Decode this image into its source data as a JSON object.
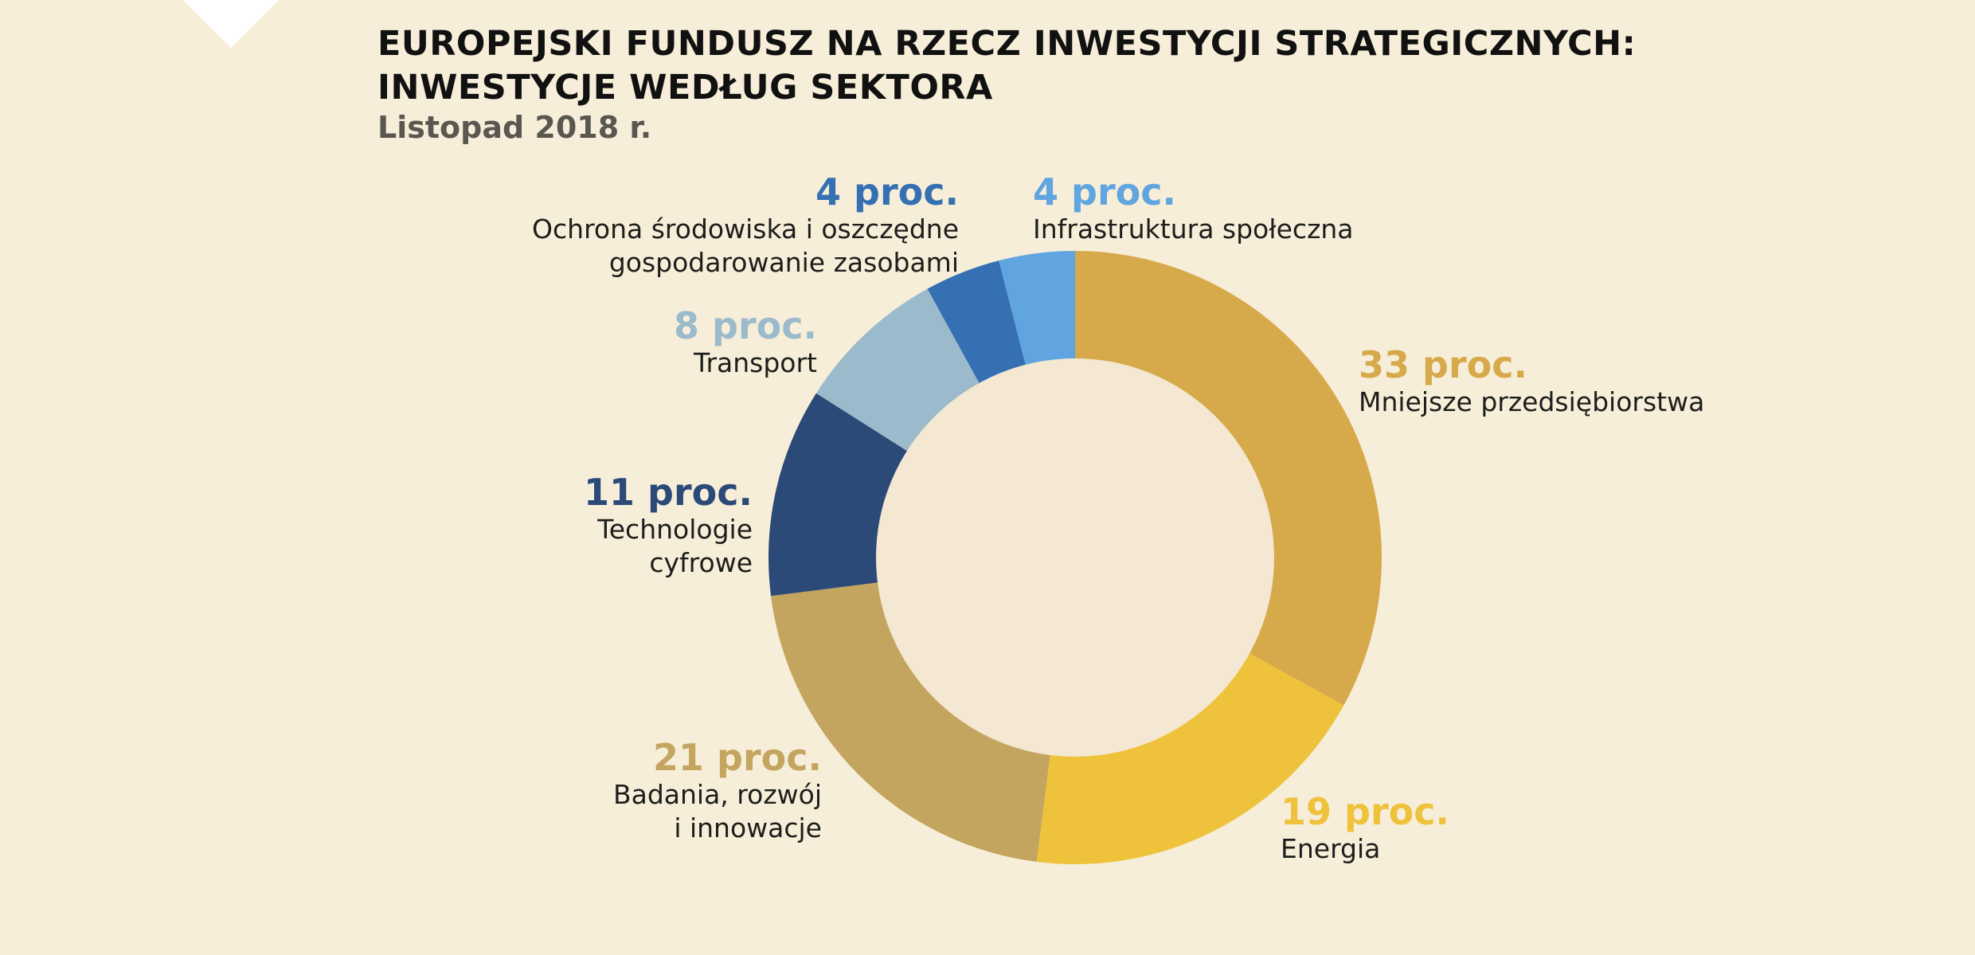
{
  "header": {
    "title": "EUROPEJSKI FUNDUSZ NA RZECZ INWESTYCJI STRATEGICZNYCH: INWESTYCJE WEDŁUG SEKTORA",
    "subtitle": "Listopad 2018 r."
  },
  "colors": {
    "background": "#f7eed9",
    "inner": "#f4e8d2"
  },
  "chart_data": {
    "type": "pie",
    "title": "EUROPEJSKI FUNDUSZ NA RZECZ INWESTYCJI STRATEGICZNYCH: INWESTYCJE WEDŁUG SEKTORA",
    "subtitle": "Listopad 2018 r.",
    "donut": true,
    "slices": [
      {
        "name": "Mniejsze przedsiębiorstwa",
        "value": 33,
        "label": "33 proc.",
        "color": "#d6a94a"
      },
      {
        "name": "Energia",
        "value": 19,
        "label": "19 proc.",
        "color": "#eec23b"
      },
      {
        "name": "Badania, rozwój\ni innowacje",
        "value": 21,
        "label": "21 proc.",
        "color": "#c4a55f"
      },
      {
        "name": "Technologie\ncyfrowe",
        "value": 11,
        "label": "11 proc.",
        "color": "#2c4a78"
      },
      {
        "name": "Transport",
        "value": 8,
        "label": "8 proc.",
        "color": "#9bbacb"
      },
      {
        "name": "Ochrona środowiska i oszczędne\ngospodarowanie zasobami",
        "value": 4,
        "label": "4 proc.",
        "color": "#3570b3"
      },
      {
        "name": "Infrastruktura społeczna",
        "value": 4,
        "label": "4 proc.",
        "color": "#60a5e0"
      }
    ]
  }
}
